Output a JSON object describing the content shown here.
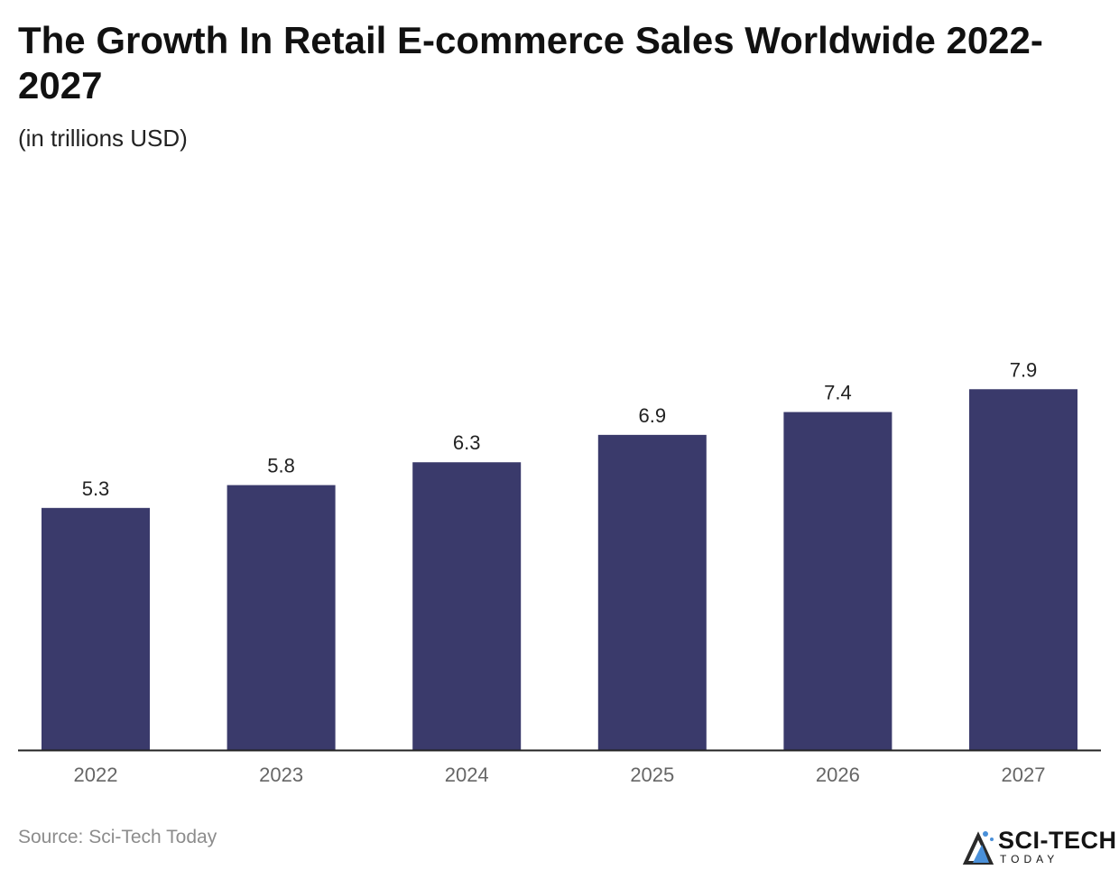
{
  "chart_data": {
    "type": "bar",
    "title": "The Growth In Retail E-commerce Sales Worldwide 2022-2027",
    "subtitle": "(in trillions USD)",
    "categories": [
      "2022",
      "2023",
      "2024",
      "2025",
      "2026",
      "2027"
    ],
    "values": [
      5.3,
      5.8,
      6.3,
      6.9,
      7.4,
      7.9
    ],
    "value_labels": [
      "5.3",
      "5.8",
      "6.3",
      "6.9",
      "7.4",
      "7.9"
    ],
    "xlabel": "",
    "ylabel": "",
    "ylim": [
      0,
      8.0
    ],
    "grid": false,
    "legend": "none",
    "bar_color": "#3a3a6b"
  },
  "footer": {
    "source": "Source: Sci-Tech Today"
  },
  "logo": {
    "name": "SCI-TECH",
    "sub": "TODAY",
    "icon": "sci-tech-logo-icon",
    "colors": [
      "#2a2a2a",
      "#4a90d9"
    ]
  }
}
